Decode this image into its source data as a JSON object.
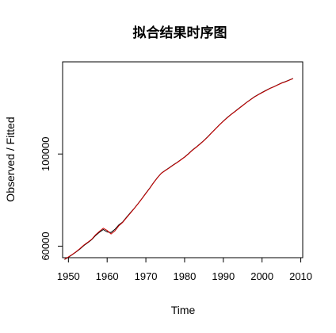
{
  "chart_data": {
    "type": "line",
    "title": "拟合结果时序图",
    "xlabel": "Time",
    "ylabel": "Observed / Fitted",
    "xlim": [
      1948.5,
      2010.5
    ],
    "ylim": [
      55000,
      140000
    ],
    "x_ticks": [
      1950,
      1960,
      1970,
      1980,
      1990,
      2000,
      2010
    ],
    "x_tick_labels": [
      "1950",
      "1960",
      "1970",
      "1980",
      "1990",
      "2000",
      "2010"
    ],
    "y_ticks": [
      60000,
      100000
    ],
    "y_tick_labels": [
      "60000",
      "100000"
    ],
    "grid": false,
    "legend": "none",
    "series": [
      {
        "key": "observed",
        "color": "#000000",
        "x": [
          1949,
          1950,
          1951,
          1952,
          1953,
          1954,
          1955,
          1956,
          1957,
          1958,
          1959,
          1960,
          1961,
          1962,
          1963,
          1964,
          1965,
          1966,
          1967,
          1968,
          1969,
          1970,
          1971,
          1972,
          1973,
          1974,
          1975,
          1976,
          1977,
          1978,
          1979,
          1980,
          1981,
          1982,
          1983,
          1984,
          1985,
          1986,
          1987,
          1988,
          1989,
          1990,
          1991,
          1992,
          1993,
          1994,
          1995,
          1996,
          1997,
          1998,
          1999,
          2000,
          2001,
          2002,
          2003,
          2004,
          2005,
          2006,
          2007,
          2008
        ],
        "y": [
          54200,
          55200,
          56300,
          57500,
          58800,
          60300,
          61500,
          62800,
          64600,
          66000,
          67200,
          66200,
          65900,
          67300,
          69200,
          70500,
          72500,
          74500,
          76400,
          78500,
          80700,
          83000,
          85200,
          87600,
          89800,
          91700,
          92900,
          94000,
          95200,
          96300,
          97500,
          98700,
          100100,
          101700,
          103000,
          104400,
          105900,
          107500,
          109300,
          111000,
          112700,
          114300,
          115800,
          117200,
          118500,
          119800,
          121100,
          122400,
          123600,
          124800,
          125800,
          126700,
          127600,
          128500,
          129200,
          130000,
          130800,
          131400,
          132100,
          132800
        ]
      },
      {
        "key": "fitted",
        "color": "#cc0000",
        "x": [
          1949,
          1950,
          1951,
          1952,
          1953,
          1954,
          1955,
          1956,
          1957,
          1958,
          1959,
          1960,
          1961,
          1962,
          1963,
          1964,
          1965,
          1966,
          1967,
          1968,
          1969,
          1970,
          1971,
          1972,
          1973,
          1974,
          1975,
          1976,
          1977,
          1978,
          1979,
          1980,
          1981,
          1982,
          1983,
          1984,
          1985,
          1986,
          1987,
          1988,
          1989,
          1990,
          1991,
          1992,
          1993,
          1994,
          1995,
          1996,
          1997,
          1998,
          1999,
          2000,
          2001,
          2002,
          2003,
          2004,
          2005,
          2006,
          2007,
          2008
        ],
        "y": [
          54300,
          55300,
          56400,
          57600,
          59000,
          60500,
          61700,
          63000,
          64900,
          66400,
          67800,
          66800,
          65300,
          66600,
          68800,
          70300,
          72300,
          74300,
          76300,
          78400,
          80600,
          82900,
          85100,
          87500,
          89700,
          91600,
          92800,
          93900,
          95100,
          96200,
          97400,
          98600,
          100000,
          101600,
          102900,
          104300,
          105800,
          107400,
          109200,
          110900,
          112600,
          114200,
          115700,
          117100,
          118400,
          119700,
          121000,
          122300,
          123500,
          124700,
          125700,
          126600,
          127500,
          128400,
          129100,
          129900,
          130700,
          131300,
          132000,
          132700
        ]
      }
    ]
  }
}
